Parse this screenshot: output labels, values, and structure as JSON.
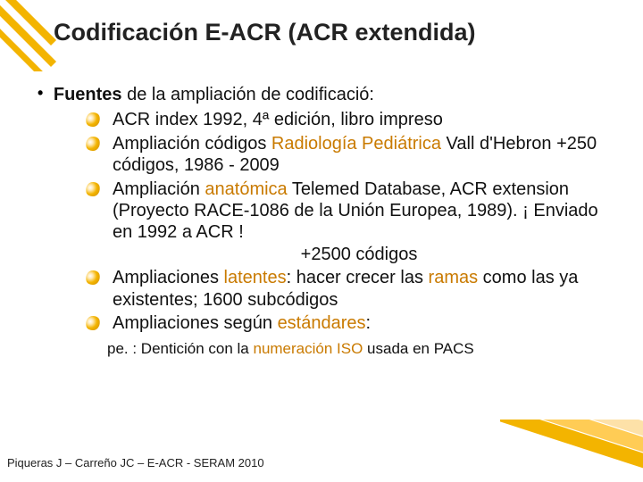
{
  "colors": {
    "accent": "#f3b400",
    "highlight": "#c97a00",
    "text": "#111111",
    "background": "#ffffff"
  },
  "title": "Codificación E-ACR (ACR extendida)",
  "lead_bold": "Fuentes",
  "lead_rest": " de la ampliación de codificació:",
  "items": {
    "i1_a": "ACR index 1992, 4ª edición, libro impreso",
    "i2_a": "Ampliación códigos ",
    "i2_hl": "Radiología Pediátrica",
    "i2_b": " Vall d'Hebron    +250 códigos, 1986 - 2009",
    "i3_a": "Ampliación ",
    "i3_hl1": "anatómica",
    "i3_b": " Telemed Database, ACR extension (Proyecto RACE-1086 de la Unión Europea, 1989). ¡ Enviado en 1992 a ACR !",
    "i3_sub": "+2500 códigos",
    "i4_a": "Ampliaciones ",
    "i4_hl1": "latentes",
    "i4_b": ": hacer crecer las ",
    "i4_hl2": "ramas",
    "i4_c": " como las ya existentes; 1600 subcódigos",
    "i5_a": "Ampliaciones según ",
    "i5_hl": "estándares",
    "i5_b": ":"
  },
  "note_a": "pe. : Dentición con la ",
  "note_hl": "numeración ISO",
  "note_b": " usada en PACS",
  "footer": "Piqueras J – Carreño JC – E-ACR - SERAM 2010"
}
